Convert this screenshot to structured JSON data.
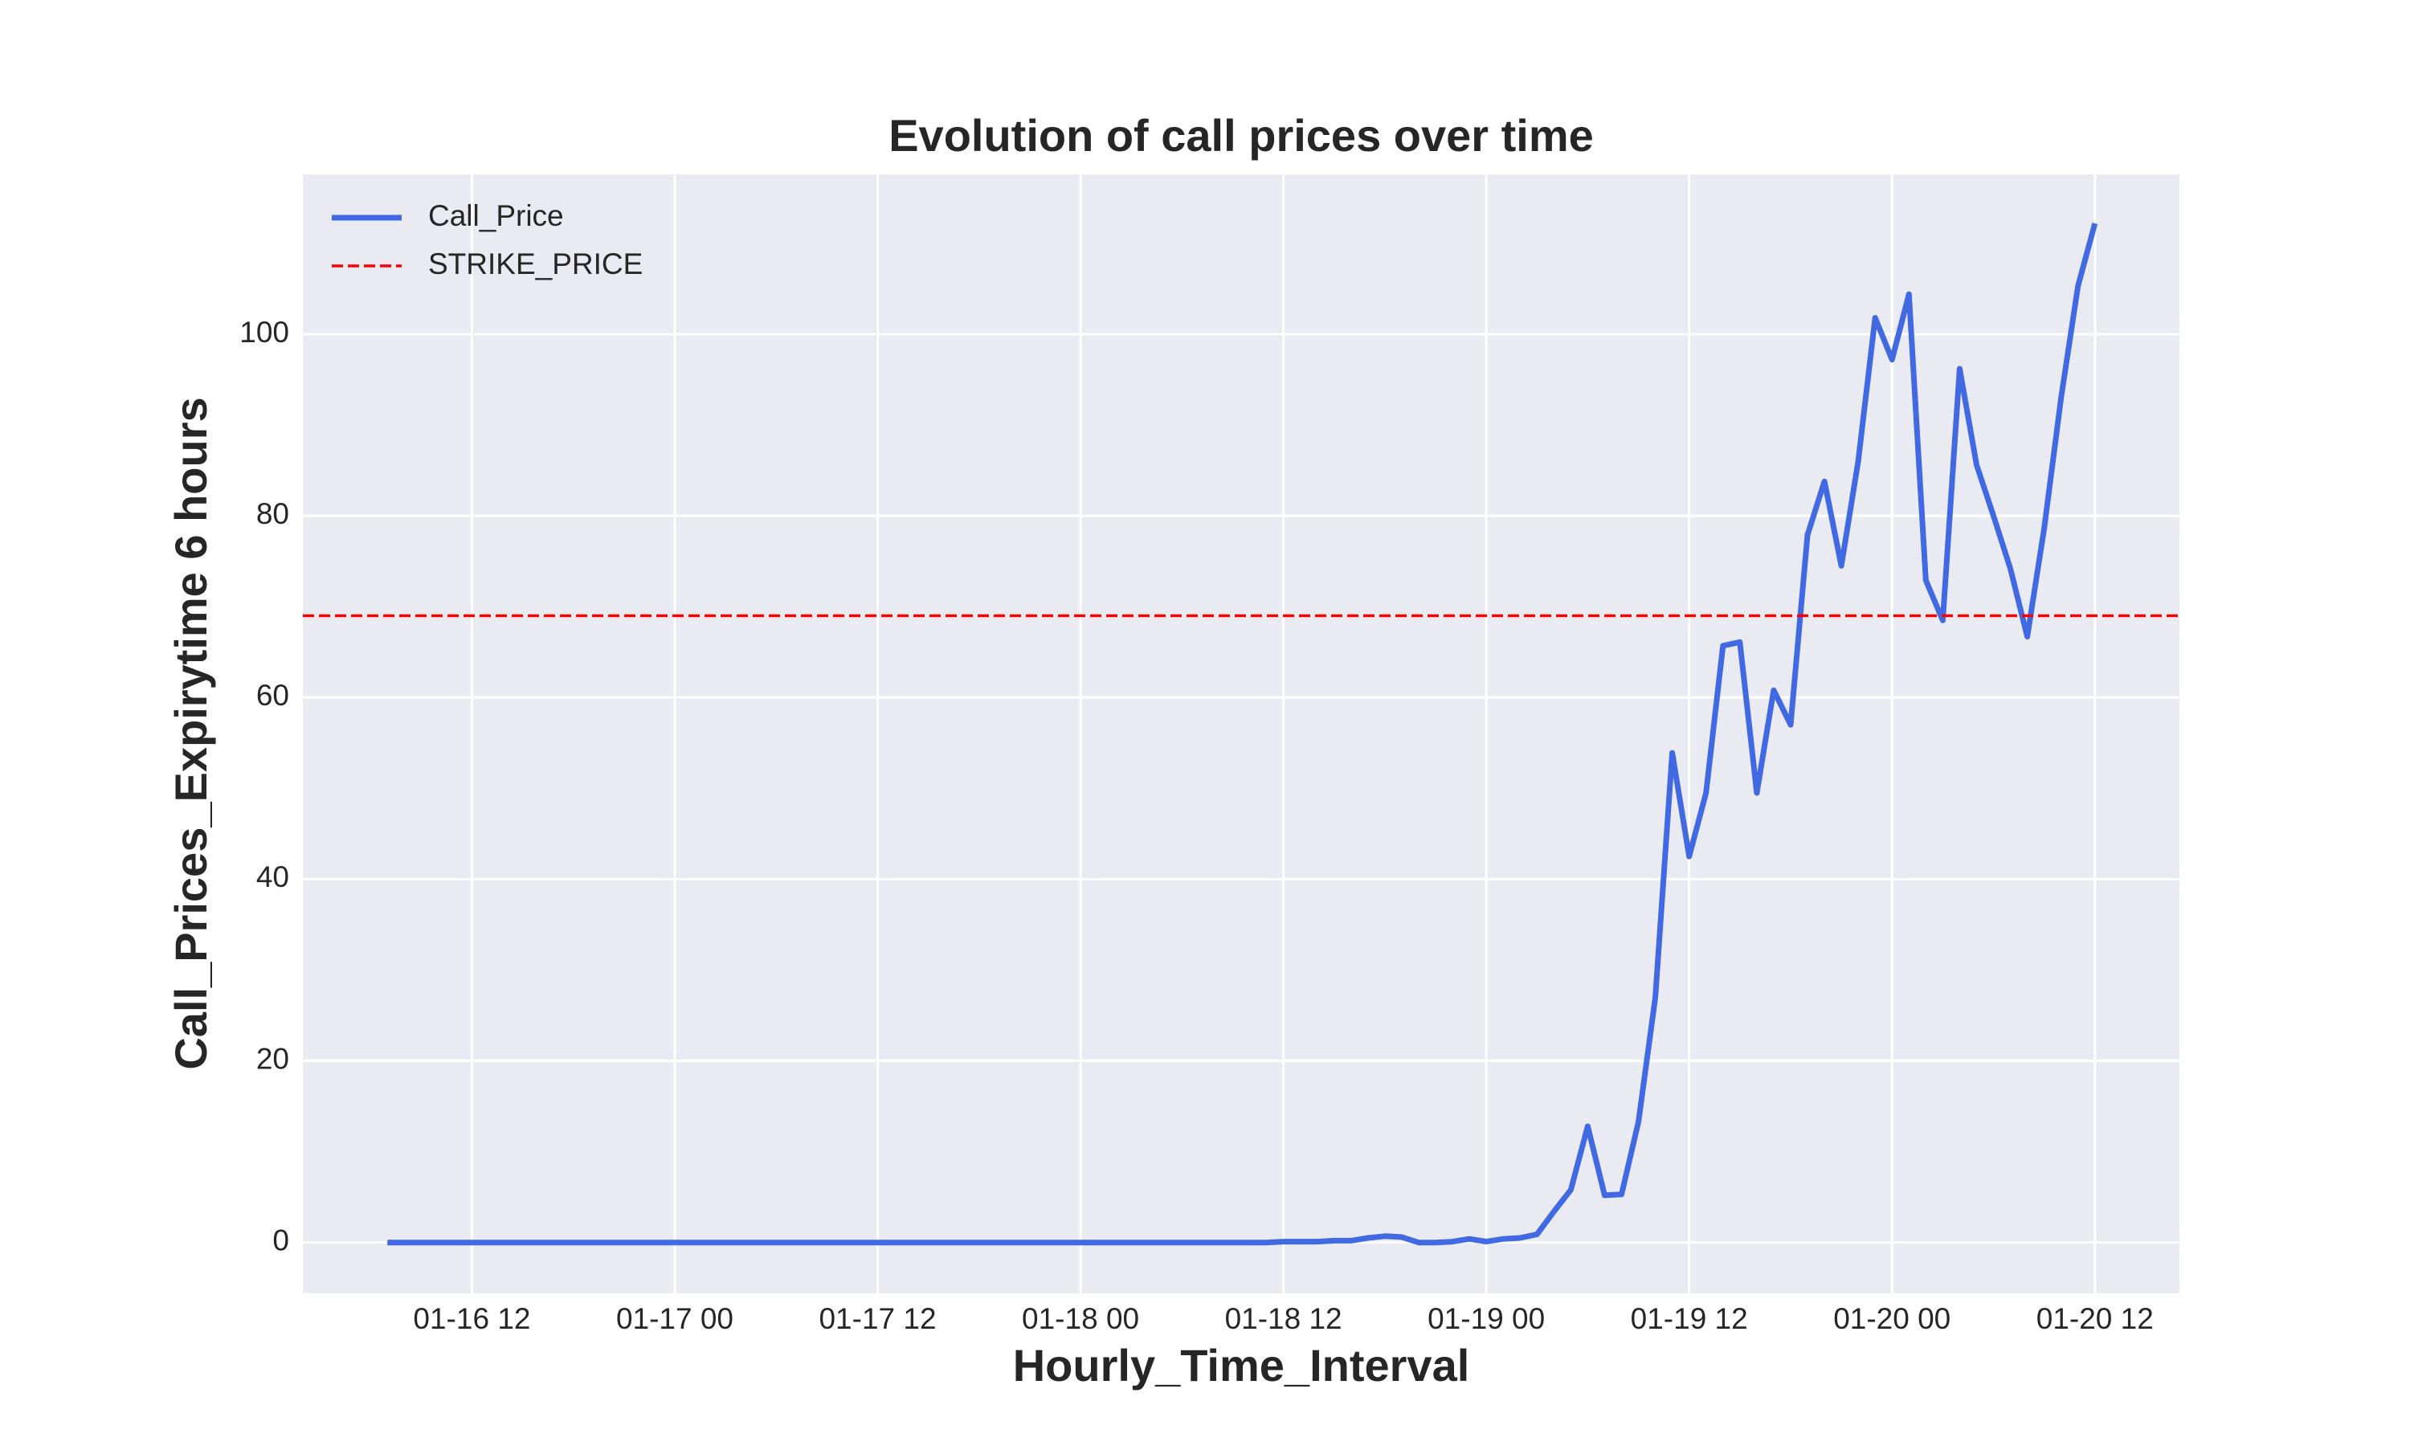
{
  "chart_data": {
    "type": "line",
    "title": "Evolution of call prices over time",
    "x_label": "Hourly_Time_Interval",
    "y_label": "Call_Prices_Expirytime 6 hours",
    "x": [
      "01-16 07",
      "01-16 08",
      "01-16 09",
      "01-16 10",
      "01-16 11",
      "01-16 12",
      "01-16 13",
      "01-16 14",
      "01-16 15",
      "01-16 16",
      "01-16 17",
      "01-16 18",
      "01-16 19",
      "01-16 20",
      "01-16 21",
      "01-16 22",
      "01-16 23",
      "01-17 00",
      "01-17 01",
      "01-17 02",
      "01-17 03",
      "01-17 04",
      "01-17 05",
      "01-17 06",
      "01-17 07",
      "01-17 08",
      "01-17 09",
      "01-17 10",
      "01-17 11",
      "01-17 12",
      "01-17 13",
      "01-17 14",
      "01-17 15",
      "01-17 16",
      "01-17 17",
      "01-17 18",
      "01-17 19",
      "01-17 20",
      "01-17 21",
      "01-17 22",
      "01-17 23",
      "01-18 00",
      "01-18 01",
      "01-18 02",
      "01-18 03",
      "01-18 04",
      "01-18 05",
      "01-18 06",
      "01-18 07",
      "01-18 08",
      "01-18 09",
      "01-18 10",
      "01-18 11",
      "01-18 12",
      "01-18 13",
      "01-18 14",
      "01-18 15",
      "01-18 16",
      "01-18 17",
      "01-18 18",
      "01-18 19",
      "01-18 20",
      "01-18 21",
      "01-18 22",
      "01-18 23",
      "01-19 00",
      "01-19 01",
      "01-19 02",
      "01-19 03",
      "01-19 04",
      "01-19 05",
      "01-19 06",
      "01-19 07",
      "01-19 08",
      "01-19 09",
      "01-19 10",
      "01-19 11",
      "01-19 12",
      "01-19 13",
      "01-19 14",
      "01-19 15",
      "01-19 16",
      "01-19 17",
      "01-19 18",
      "01-19 19",
      "01-19 20",
      "01-19 21",
      "01-19 22",
      "01-19 23",
      "01-20 00",
      "01-20 01",
      "01-20 02",
      "01-20 03",
      "01-20 04",
      "01-20 05",
      "01-20 06",
      "01-20 07",
      "01-20 08",
      "01-20 09",
      "01-20 10",
      "01-20 11",
      "01-20 12"
    ],
    "series": [
      {
        "name": "Call_Price",
        "color": "#4169e1",
        "values": [
          0,
          0,
          0,
          0,
          0,
          0,
          0,
          0,
          0,
          0,
          0,
          0,
          0,
          0,
          0,
          0,
          0,
          0,
          0,
          0,
          0,
          0,
          0,
          0,
          0,
          0,
          0,
          0,
          0,
          0,
          0,
          0,
          0,
          0,
          0,
          0,
          0,
          0,
          0,
          0,
          0,
          0,
          0,
          0,
          0,
          0,
          0,
          0,
          0,
          0,
          0,
          0,
          0,
          0.1,
          0.1,
          0.1,
          0.2,
          0.2,
          0.5,
          0.7,
          0.6,
          0.0,
          0.0,
          0.1,
          0.4,
          0.1,
          0.4,
          0.5,
          0.9,
          3.4,
          5.8,
          12.8,
          5.2,
          5.3,
          13.3,
          27,
          53.9,
          42.5,
          49.5,
          65.7,
          66.1,
          49.5,
          60.8,
          57,
          77.9,
          83.8,
          74.5,
          86,
          101.8,
          97.2,
          104.4,
          72.9,
          68.5,
          96.2,
          85.6,
          80,
          74.2,
          66.7,
          78.6,
          93,
          105.3,
          112.2
        ]
      }
    ],
    "hlines": [
      {
        "name": "STRIKE_PRICE",
        "value": 69,
        "color": "#ff0000",
        "style": "dashed"
      }
    ],
    "xlim": [
      "01-16 02",
      "01-20 17"
    ],
    "xticks": [
      "01-16 12",
      "01-17 00",
      "01-17 12",
      "01-18 00",
      "01-18 12",
      "01-19 00",
      "01-19 12",
      "01-20 00",
      "01-20 12"
    ],
    "ylim": [
      -5.6,
      117.6
    ],
    "yticks": [
      0,
      20,
      40,
      60,
      80,
      100
    ],
    "grid": true,
    "legend_position": "upper left"
  }
}
